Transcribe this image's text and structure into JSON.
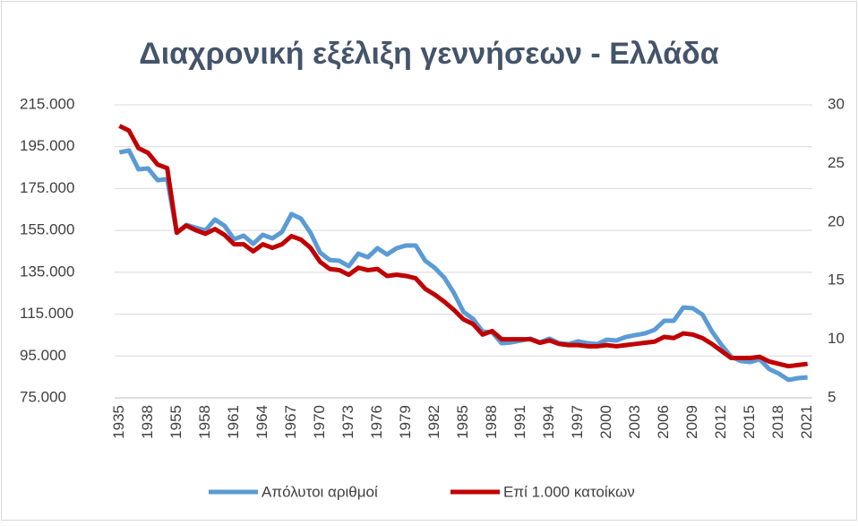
{
  "chart_data": {
    "type": "line",
    "title": "Διαχρονική εξέλιξη γεννήσεων - Ελλάδα",
    "categories": [
      "1935",
      null,
      null,
      "1938",
      null,
      null,
      "1955",
      null,
      null,
      "1958",
      null,
      null,
      "1961",
      null,
      null,
      "1964",
      null,
      null,
      "1967",
      null,
      null,
      "1970",
      null,
      null,
      "1973",
      null,
      null,
      "1976",
      null,
      null,
      "1979",
      null,
      null,
      "1982",
      null,
      null,
      "1985",
      null,
      null,
      "1988",
      null,
      null,
      "1991",
      null,
      null,
      "1994",
      null,
      null,
      "1997",
      null,
      null,
      "2000",
      null,
      null,
      "2003",
      null,
      null,
      "2006",
      null,
      null,
      "2009",
      null,
      null,
      "2012",
      null,
      null,
      "2015",
      null,
      null,
      "2018",
      null,
      null,
      "2021"
    ],
    "series": [
      {
        "name": "Απόλυτοι αριθμοί",
        "color": "#5b9bd5",
        "axis": "y",
        "values": [
          192300,
          193200,
          184200,
          184600,
          179000,
          179500,
          153800,
          157600,
          156300,
          155000,
          160200,
          157200,
          150800,
          152500,
          148600,
          152900,
          151200,
          154200,
          162800,
          160600,
          153800,
          144400,
          140900,
          140500,
          137900,
          143900,
          142200,
          146500,
          143500,
          146500,
          147800,
          147800,
          140500,
          137100,
          132400,
          125100,
          116100,
          112700,
          106700,
          106300,
          101100,
          101500,
          102400,
          103300,
          101500,
          103300,
          101100,
          100700,
          102000,
          101100,
          100700,
          102800,
          102400,
          104100,
          105000,
          105800,
          107500,
          111800,
          111800,
          118200,
          117800,
          114800,
          106700,
          100300,
          94700,
          92600,
          92100,
          93400,
          88700,
          86600,
          83600,
          84400,
          84800
        ]
      },
      {
        "name": "Επί 1.000 κατοίκων",
        "color": "#c00000",
        "axis": "y2",
        "values": [
          28.2,
          27.8,
          26.3,
          25.9,
          24.9,
          24.6,
          19.1,
          19.7,
          19.3,
          19.0,
          19.4,
          18.9,
          18.1,
          18.1,
          17.5,
          18.1,
          17.8,
          18.1,
          18.8,
          18.5,
          17.8,
          16.6,
          16.0,
          15.9,
          15.5,
          16.1,
          15.9,
          16.0,
          15.4,
          15.5,
          15.4,
          15.2,
          14.3,
          13.8,
          13.2,
          12.5,
          11.7,
          11.3,
          10.4,
          10.7,
          10.0,
          10.0,
          10.0,
          10.0,
          9.7,
          9.9,
          9.6,
          9.5,
          9.5,
          9.4,
          9.4,
          9.5,
          9.4,
          9.5,
          9.6,
          9.7,
          9.8,
          10.2,
          10.1,
          10.5,
          10.4,
          10.1,
          9.6,
          9.0,
          8.4,
          8.4,
          8.4,
          8.5,
          8.1,
          7.9,
          7.7,
          7.8,
          7.9
        ]
      }
    ],
    "ylim": [
      75000,
      215000
    ],
    "yticks": [
      {
        "value": 75000,
        "label": "75.000"
      },
      {
        "value": 95000,
        "label": "95.000"
      },
      {
        "value": 115000,
        "label": "115.000"
      },
      {
        "value": 135000,
        "label": "135.000"
      },
      {
        "value": 155000,
        "label": "155.000"
      },
      {
        "value": 175000,
        "label": "175.000"
      },
      {
        "value": 195000,
        "label": "195.000"
      },
      {
        "value": 215000,
        "label": "215.000"
      }
    ],
    "y2lim": [
      5,
      30
    ],
    "y2ticks": [
      5,
      10,
      15,
      20,
      25,
      30
    ],
    "grid": true,
    "legend": "bottom"
  }
}
